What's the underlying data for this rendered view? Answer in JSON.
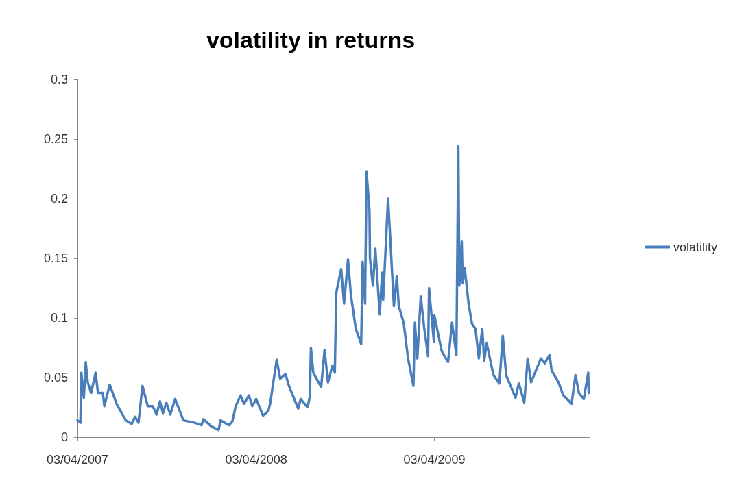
{
  "chart_data": {
    "type": "line",
    "title": "volatility in returns",
    "x": [
      "2007-04-03",
      "2007-04-09",
      "2007-04-11",
      "2007-04-16",
      "2007-04-20",
      "2007-04-24",
      "2007-05-01",
      "2007-05-10",
      "2007-05-15",
      "2007-05-25",
      "2007-05-28",
      "2007-06-08",
      "2007-06-22",
      "2007-07-11",
      "2007-07-23",
      "2007-07-30",
      "2007-08-06",
      "2007-08-14",
      "2007-08-25",
      "2007-09-04",
      "2007-09-12",
      "2007-09-19",
      "2007-09-25",
      "2007-10-02",
      "2007-10-10",
      "2007-10-20",
      "2007-11-06",
      "2007-11-29",
      "2007-12-13",
      "2007-12-17",
      "2008-01-02",
      "2008-01-17",
      "2008-01-21",
      "2008-02-07",
      "2008-02-14",
      "2008-02-21",
      "2008-03-02",
      "2008-03-09",
      "2008-03-19",
      "2008-03-26",
      "2008-04-03",
      "2008-04-17",
      "2008-04-28",
      "2008-05-02",
      "2008-05-08",
      "2008-05-15",
      "2008-05-22",
      "2008-06-02",
      "2008-06-09",
      "2008-06-28",
      "2008-07-03",
      "2008-07-17",
      "2008-07-22",
      "2008-07-24",
      "2008-07-29",
      "2008-08-14",
      "2008-08-21",
      "2008-08-28",
      "2008-09-06",
      "2008-09-11",
      "2008-09-14",
      "2008-09-24",
      "2008-09-30",
      "2008-10-08",
      "2008-10-14",
      "2008-10-24",
      "2008-11-04",
      "2008-11-07",
      "2008-11-12",
      "2008-11-15",
      "2008-11-21",
      "2008-11-22",
      "2008-11-28",
      "2008-12-03",
      "2008-12-12",
      "2008-12-17",
      "2008-12-19",
      "2008-12-26",
      "2008-12-29",
      "2009-01-02",
      "2009-01-10",
      "2009-01-16",
      "2009-01-20",
      "2009-01-30",
      "2009-02-08",
      "2009-02-19",
      "2009-02-22",
      "2009-02-27",
      "2009-03-06",
      "2009-03-13",
      "2009-03-21",
      "2009-03-23",
      "2009-04-02",
      "2009-04-03",
      "2009-04-18",
      "2009-05-01",
      "2009-05-09",
      "2009-05-18",
      "2009-05-22",
      "2009-05-24",
      "2009-05-29",
      "2009-05-31",
      "2009-06-04",
      "2009-06-12",
      "2009-06-19",
      "2009-06-26",
      "2009-07-03",
      "2009-07-10",
      "2009-07-14",
      "2009-07-19",
      "2009-08-02",
      "2009-08-14",
      "2009-08-21",
      "2009-08-28",
      "2009-09-16",
      "2009-09-23",
      "2009-10-04",
      "2009-10-11",
      "2009-10-18",
      "2009-10-28",
      "2009-11-07",
      "2009-11-15",
      "2009-11-25",
      "2009-11-29",
      "2009-12-13",
      "2009-12-23",
      "2010-01-09",
      "2010-01-17",
      "2010-01-24",
      "2010-02-03",
      "2010-02-12",
      "2010-02-13"
    ],
    "series": [
      {
        "name": "volatility",
        "color": "#4a7ebb",
        "values": [
          0.014,
          0.012,
          0.054,
          0.033,
          0.063,
          0.046,
          0.037,
          0.054,
          0.037,
          0.037,
          0.026,
          0.044,
          0.028,
          0.014,
          0.011,
          0.017,
          0.012,
          0.043,
          0.026,
          0.026,
          0.019,
          0.03,
          0.02,
          0.029,
          0.019,
          0.032,
          0.014,
          0.012,
          0.01,
          0.015,
          0.009,
          0.006,
          0.014,
          0.01,
          0.013,
          0.026,
          0.035,
          0.028,
          0.035,
          0.026,
          0.032,
          0.018,
          0.022,
          0.029,
          0.046,
          0.065,
          0.049,
          0.053,
          0.043,
          0.024,
          0.032,
          0.025,
          0.034,
          0.075,
          0.054,
          0.042,
          0.073,
          0.046,
          0.06,
          0.054,
          0.121,
          0.141,
          0.112,
          0.149,
          0.119,
          0.091,
          0.078,
          0.147,
          0.112,
          0.223,
          0.19,
          0.15,
          0.127,
          0.158,
          0.103,
          0.138,
          0.115,
          0.174,
          0.2,
          0.171,
          0.11,
          0.135,
          0.11,
          0.096,
          0.066,
          0.043,
          0.096,
          0.066,
          0.118,
          0.092,
          0.068,
          0.125,
          0.08,
          0.102,
          0.072,
          0.063,
          0.096,
          0.069,
          0.244,
          0.127,
          0.164,
          0.129,
          0.142,
          0.112,
          0.095,
          0.091,
          0.066,
          0.091,
          0.064,
          0.079,
          0.052,
          0.045,
          0.085,
          0.052,
          0.033,
          0.045,
          0.029,
          0.066,
          0.046,
          0.056,
          0.066,
          0.062,
          0.069,
          0.056,
          0.046,
          0.035,
          0.028,
          0.052,
          0.037,
          0.032,
          0.054,
          0.037
        ]
      }
    ],
    "xlim": [
      "2007-04-03",
      "2010-02-15"
    ],
    "xticks": [
      {
        "value": "2007-04-03",
        "label": "03/04/2007"
      },
      {
        "value": "2008-04-03",
        "label": "03/04/2008"
      },
      {
        "value": "2009-04-03",
        "label": "03/04/2009"
      }
    ],
    "ylim": [
      0,
      0.3
    ],
    "yticks": [
      0,
      0.05,
      0.1,
      0.15,
      0.2,
      0.25,
      0.3
    ],
    "grid": false,
    "legend": "right",
    "marker": "none",
    "line_style": "solid"
  }
}
